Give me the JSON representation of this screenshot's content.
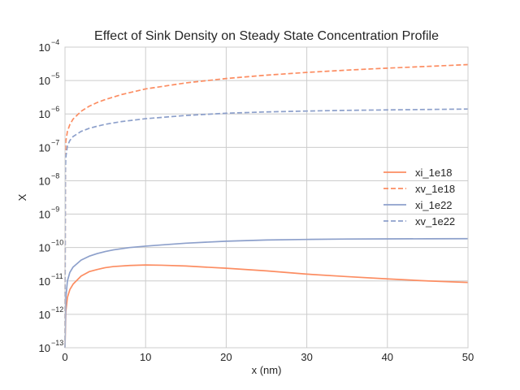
{
  "chart_data": {
    "type": "line",
    "title": "Effect of Sink Density on Steady State Concentration Profile",
    "xlabel": "x (nm)",
    "ylabel": "X",
    "xlim": [
      0,
      50
    ],
    "ylim": [
      1e-13,
      0.0001
    ],
    "yscale": "log",
    "grid": true,
    "legend_position": "center-right",
    "x_ticks": [
      {
        "value": 0,
        "label": "0"
      },
      {
        "value": 10,
        "label": "10"
      },
      {
        "value": 20,
        "label": "20"
      },
      {
        "value": 30,
        "label": "30"
      },
      {
        "value": 40,
        "label": "40"
      },
      {
        "value": 50,
        "label": "50"
      }
    ],
    "y_ticks": [
      {
        "value": 1e-13,
        "base": "10",
        "exp": "−13"
      },
      {
        "value": 1e-12,
        "base": "10",
        "exp": "−12"
      },
      {
        "value": 1e-11,
        "base": "10",
        "exp": "−11"
      },
      {
        "value": 1e-10,
        "base": "10",
        "exp": "−10"
      },
      {
        "value": 1e-09,
        "base": "10",
        "exp": "−9"
      },
      {
        "value": 1e-08,
        "base": "10",
        "exp": "−8"
      },
      {
        "value": 1e-07,
        "base": "10",
        "exp": "−7"
      },
      {
        "value": 1e-06,
        "base": "10",
        "exp": "−6"
      },
      {
        "value": 1e-05,
        "base": "10",
        "exp": "−5"
      },
      {
        "value": 0.0001,
        "base": "10",
        "exp": "−4"
      }
    ],
    "series": [
      {
        "name": "xi_1e18",
        "color": "#fc8d62",
        "dash": "solid",
        "x": [
          0,
          0.1,
          0.3,
          0.6,
          1,
          2,
          3,
          4,
          5,
          6,
          8,
          10,
          12,
          15,
          20,
          25,
          30,
          35,
          40,
          45,
          50
        ],
        "y": [
          1e-13,
          1.2e-12,
          3.2e-12,
          5.5e-12,
          8e-12,
          1.4e-11,
          1.9e-11,
          2.2e-11,
          2.5e-11,
          2.7e-11,
          2.9e-11,
          3e-11,
          2.95e-11,
          2.8e-11,
          2.4e-11,
          2e-11,
          1.6e-11,
          1.35e-11,
          1.15e-11,
          1e-11,
          9e-12
        ]
      },
      {
        "name": "xv_1e18",
        "color": "#fc8d62",
        "dash": "dashed",
        "x": [
          0,
          0.05,
          0.1,
          0.3,
          0.6,
          1,
          2,
          3,
          4,
          5,
          7,
          10,
          15,
          20,
          25,
          30,
          35,
          40,
          45,
          50
        ],
        "y": [
          1e-13,
          6e-08,
          1.5e-07,
          3e-07,
          4.8e-07,
          7e-07,
          1.2e-06,
          1.7e-06,
          2.2e-06,
          2.7e-06,
          3.8e-06,
          5.6e-06,
          8.5e-06,
          1.15e-05,
          1.45e-05,
          1.75e-05,
          2.05e-05,
          2.35e-05,
          2.65e-05,
          3e-05
        ]
      },
      {
        "name": "xi_1e22",
        "color": "#8da0cb",
        "dash": "solid",
        "x": [
          0,
          0.1,
          0.3,
          0.6,
          1,
          2,
          3,
          4,
          5,
          6,
          8,
          10,
          12,
          15,
          20,
          25,
          30,
          35,
          40,
          45,
          50
        ],
        "y": [
          1e-13,
          3e-12,
          1e-11,
          1.8e-11,
          2.6e-11,
          4.2e-11,
          5.5e-11,
          6.6e-11,
          7.6e-11,
          8.5e-11,
          1e-10,
          1.1e-10,
          1.2e-10,
          1.35e-10,
          1.55e-10,
          1.68e-10,
          1.75e-10,
          1.8e-10,
          1.82e-10,
          1.83e-10,
          1.84e-10
        ]
      },
      {
        "name": "xv_1e22",
        "color": "#8da0cb",
        "dash": "dashed",
        "x": [
          0,
          0.05,
          0.1,
          0.3,
          0.6,
          1,
          2,
          3,
          4,
          5,
          7,
          10,
          15,
          20,
          25,
          30,
          35,
          40,
          45,
          50
        ],
        "y": [
          1e-13,
          2e-08,
          5e-08,
          1.1e-07,
          1.6e-07,
          2.1e-07,
          3e-07,
          3.7e-07,
          4.3e-07,
          4.9e-07,
          5.9e-07,
          7.2e-07,
          9e-07,
          1.05e-06,
          1.15e-06,
          1.22e-06,
          1.28e-06,
          1.32e-06,
          1.36e-06,
          1.4e-06
        ]
      }
    ]
  }
}
